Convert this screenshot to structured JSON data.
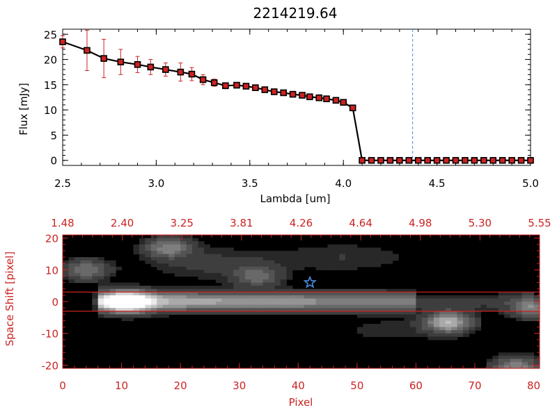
{
  "chart_data": [
    {
      "type": "line",
      "title": "2214219.64",
      "xlabel": "Lambda [um]",
      "ylabel": "Flux [mJy]",
      "xlim": [
        2.5,
        5.0
      ],
      "ylim": [
        -1,
        26
      ],
      "x_ticks": [
        "2.5",
        "3.0",
        "3.5",
        "4.0",
        "4.5",
        "5.0"
      ],
      "y_ticks": [
        "0",
        "5",
        "10",
        "15",
        "20",
        "25"
      ],
      "grid": false,
      "series": [
        {
          "color": "#000000",
          "marker_color": "#cc2222",
          "error_color": "#cc2222",
          "x": [
            2.5,
            2.63,
            2.72,
            2.81,
            2.9,
            2.97,
            3.05,
            3.13,
            3.19,
            3.25,
            3.31,
            3.37,
            3.43,
            3.48,
            3.53,
            3.58,
            3.63,
            3.68,
            3.73,
            3.78,
            3.82,
            3.87,
            3.91,
            3.96,
            4.0,
            4.05,
            4.1,
            4.15,
            4.2,
            4.25,
            4.3,
            4.35,
            4.4,
            4.45,
            4.5,
            4.55,
            4.6,
            4.65,
            4.7,
            4.75,
            4.8,
            4.85,
            4.9,
            4.95,
            5.0
          ],
          "y": [
            23.5,
            21.8,
            20.2,
            19.5,
            19.0,
            18.5,
            18.0,
            17.5,
            17.1,
            16.0,
            15.4,
            14.8,
            14.9,
            14.7,
            14.4,
            14.0,
            13.6,
            13.4,
            13.1,
            12.9,
            12.6,
            12.4,
            12.2,
            11.9,
            11.5,
            10.4,
            0,
            0,
            0,
            0,
            0,
            0,
            0,
            0,
            0,
            0,
            0,
            0,
            0,
            0,
            0,
            0,
            0,
            0,
            0
          ],
          "yerr": [
            1.2,
            4.0,
            3.8,
            2.5,
            1.6,
            1.5,
            1.3,
            1.8,
            1.3,
            1.0,
            0.7,
            0.6,
            0.4,
            0.4,
            0.4,
            0.3,
            0.3,
            0.3,
            0.3,
            0.3,
            0.3,
            0.3,
            0.3,
            0.3,
            0.3,
            0.3,
            0.2,
            0.2,
            0.2,
            0.2,
            0.2,
            0.2,
            0.2,
            0.2,
            0.2,
            0.2,
            0.2,
            0.2,
            0.2,
            0.2,
            0.2,
            0.2,
            0.2,
            0.2,
            0.2
          ]
        }
      ],
      "reference_line": {
        "x": 4.37,
        "color": "#4a8ee0",
        "style": "dashed"
      },
      "zero_line": {
        "y": 0,
        "color": "#cc2222",
        "style": "dashed"
      }
    },
    {
      "type": "heatmap",
      "xlabel": "Pixel",
      "ylabel": "Space Shift [pixel]",
      "xlim": [
        0,
        81
      ],
      "ylim": [
        -21,
        21
      ],
      "x_ticks": [
        "0",
        "10",
        "20",
        "30",
        "40",
        "50",
        "60",
        "70",
        "80"
      ],
      "y_ticks": [
        "-20",
        "-10",
        "0",
        "10",
        "20"
      ],
      "top_axis_ticks": [
        "1.48",
        "2.40",
        "3.25",
        "3.81",
        "4.26",
        "4.64",
        "4.98",
        "5.30",
        "5.55"
      ],
      "axis_color": "#cc2222",
      "colormap": "grayscale",
      "aperture_lines_y": [
        3,
        -3
      ],
      "aperture_color": "#cc2222",
      "marker": {
        "shape": "star",
        "x": 42,
        "y": 6,
        "color": "#4a8ee0"
      },
      "sources": [
        {
          "x": 11,
          "y": 0,
          "peak": 1.0
        },
        {
          "x": 65.5,
          "y": -6.5,
          "peak": 0.72
        },
        {
          "x": 18,
          "y": 17,
          "peak": 0.45
        },
        {
          "x": 4,
          "y": 10,
          "peak": 0.4
        },
        {
          "x": 33,
          "y": 8,
          "peak": 0.35
        },
        {
          "x": 77,
          "y": -20.5,
          "peak": 0.5
        },
        {
          "x": 80,
          "y": -2,
          "peak": 0.45
        }
      ]
    }
  ]
}
